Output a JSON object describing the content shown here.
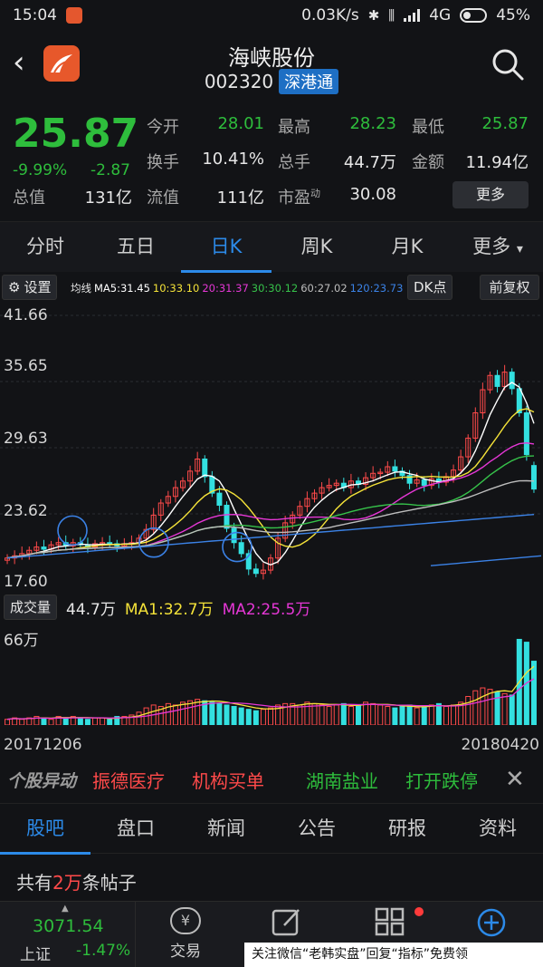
{
  "status_bar": {
    "time": "15:04",
    "speed": "0.03K/s",
    "network": "4G",
    "battery": "45%"
  },
  "header": {
    "name": "海峡股份",
    "code": "002320",
    "badge": "深港通"
  },
  "quote": {
    "price": "25.87",
    "change_pct": "-9.99%",
    "change": "-2.87",
    "market_value_label": "总值",
    "market_value": "131亿",
    "fields": [
      {
        "label": "今开",
        "value": "28.01"
      },
      {
        "label": "最高",
        "value": "28.23"
      },
      {
        "label": "最低",
        "value": "25.87"
      },
      {
        "label": "换手",
        "value": "10.41%"
      },
      {
        "label": "总手",
        "value": "44.7万"
      },
      {
        "label": "金额",
        "value": "11.94亿"
      },
      {
        "label": "流值",
        "value": "111亿"
      },
      {
        "label": "市盈",
        "sup": "动",
        "value": "30.08"
      }
    ],
    "more": "更多"
  },
  "period_tabs": [
    "分时",
    "五日",
    "日K",
    "周K",
    "月K",
    "更多"
  ],
  "ma_bar": {
    "settings": "设置",
    "prefix": "均线",
    "ma5": "MA5:31.45",
    "ma10": "10:33.10",
    "ma20": "20:31.37",
    "ma30": "30:30.12",
    "ma60": "60:27.02",
    "ma120": "120:23.73",
    "dk": "DK点",
    "restore": "前复权",
    "colors": {
      "ma5": "#ffffff",
      "ma10": "#f5e339",
      "ma20": "#e637d6",
      "ma30": "#36c24a",
      "ma60": "#bdbdbd",
      "ma120": "#3b82e6"
    }
  },
  "chart_data": {
    "type": "candlestick",
    "ylim": [
      17.6,
      41.66
    ],
    "y_ticks": [
      "41.66",
      "35.65",
      "29.63",
      "23.62",
      "17.60"
    ],
    "x_start": "20171206",
    "x_end": "20180420",
    "up_color": "#ff4a4a",
    "down_color": "#33e0e0",
    "closes": [
      19.6,
      19.8,
      20.0,
      20.3,
      20.6,
      20.4,
      20.8,
      21.0,
      20.7,
      21.0,
      20.8,
      20.6,
      20.9,
      21.0,
      20.9,
      20.7,
      20.9,
      21.0,
      21.4,
      22.2,
      23.5,
      24.6,
      25.2,
      26.0,
      26.6,
      27.5,
      28.6,
      27.0,
      25.5,
      24.4,
      22.3,
      21.0,
      20.0,
      18.6,
      18.2,
      18.5,
      19.6,
      21.4,
      22.8,
      23.5,
      24.3,
      25.0,
      25.5,
      26.0,
      26.2,
      26.4,
      26.0,
      26.6,
      26.3,
      26.9,
      27.3,
      27.4,
      27.9,
      27.5,
      27.1,
      26.4,
      26.7,
      26.2,
      26.8,
      26.5,
      27.0,
      27.6,
      28.8,
      30.5,
      32.8,
      34.9,
      36.2,
      35.2,
      36.5,
      35.0,
      32.8,
      29.0,
      25.87
    ],
    "volume_label": "成交量",
    "volume": "44.7万",
    "vol_ma1": "MA1:32.7万",
    "vol_ma2": "MA2:25.5万",
    "vol_max": "66万",
    "volumes": [
      4,
      5,
      4,
      5,
      6,
      5,
      4,
      6,
      5,
      6,
      5,
      4,
      5,
      5,
      4,
      6,
      6,
      7,
      9,
      12,
      14,
      13,
      15,
      14,
      16,
      17,
      18,
      17,
      16,
      15,
      14,
      13,
      12,
      11,
      10,
      11,
      12,
      14,
      15,
      15,
      14,
      16,
      15,
      14,
      13,
      14,
      15,
      13,
      14,
      16,
      15,
      14,
      13,
      12,
      13,
      14,
      12,
      13,
      14,
      15,
      13,
      14,
      16,
      20,
      24,
      26,
      25,
      23,
      22,
      21,
      60,
      58,
      44.7
    ]
  },
  "alerts": {
    "brand": "个股异动",
    "items": [
      "振德医疗",
      "机构买单",
      "湖南盐业",
      "打开跌停"
    ]
  },
  "info_tabs": [
    "股吧",
    "盘口",
    "新闻",
    "公告",
    "研报",
    "资料"
  ],
  "posts": {
    "prefix": "共有",
    "count": "2万",
    "suffix": "条帖子"
  },
  "bottom_nav": {
    "index_value": "3071.54",
    "index_name": "上证",
    "index_change": "-1.47%",
    "trade": "交易"
  },
  "watermark": "关注微信“老韩实盘”回复“指标”免费领"
}
